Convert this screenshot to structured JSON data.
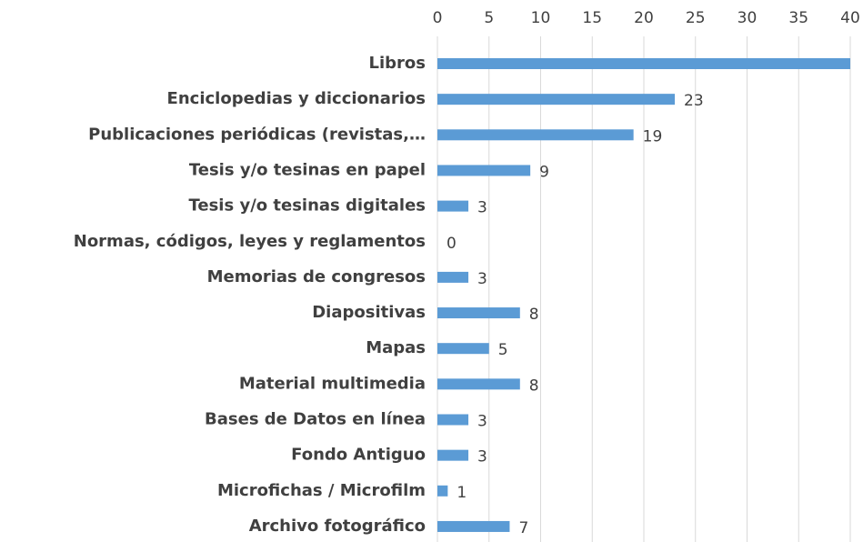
{
  "chart_data": {
    "type": "bar",
    "orientation": "horizontal",
    "categories": [
      "Libros",
      "Enciclopedias y diccionarios",
      "Publicaciones periódicas (revistas,…",
      "Tesis y/o tesinas en papel",
      "Tesis y/o tesinas digitales",
      "Normas, códigos, leyes y reglamentos",
      "Memorias de congresos",
      "Diapositivas",
      "Mapas",
      "Material multimedia",
      "Bases de Datos en línea",
      "Fondo Antiguo",
      "Microfichas / Microfilm",
      "Archivo fotográfico"
    ],
    "values": [
      40,
      23,
      19,
      9,
      3,
      0,
      3,
      8,
      5,
      8,
      3,
      3,
      1,
      7
    ],
    "color": "#5b9bd5",
    "xlim": [
      0,
      40
    ],
    "xticks": [
      0,
      5,
      10,
      15,
      20,
      25,
      30,
      35,
      40
    ],
    "grid": true
  }
}
